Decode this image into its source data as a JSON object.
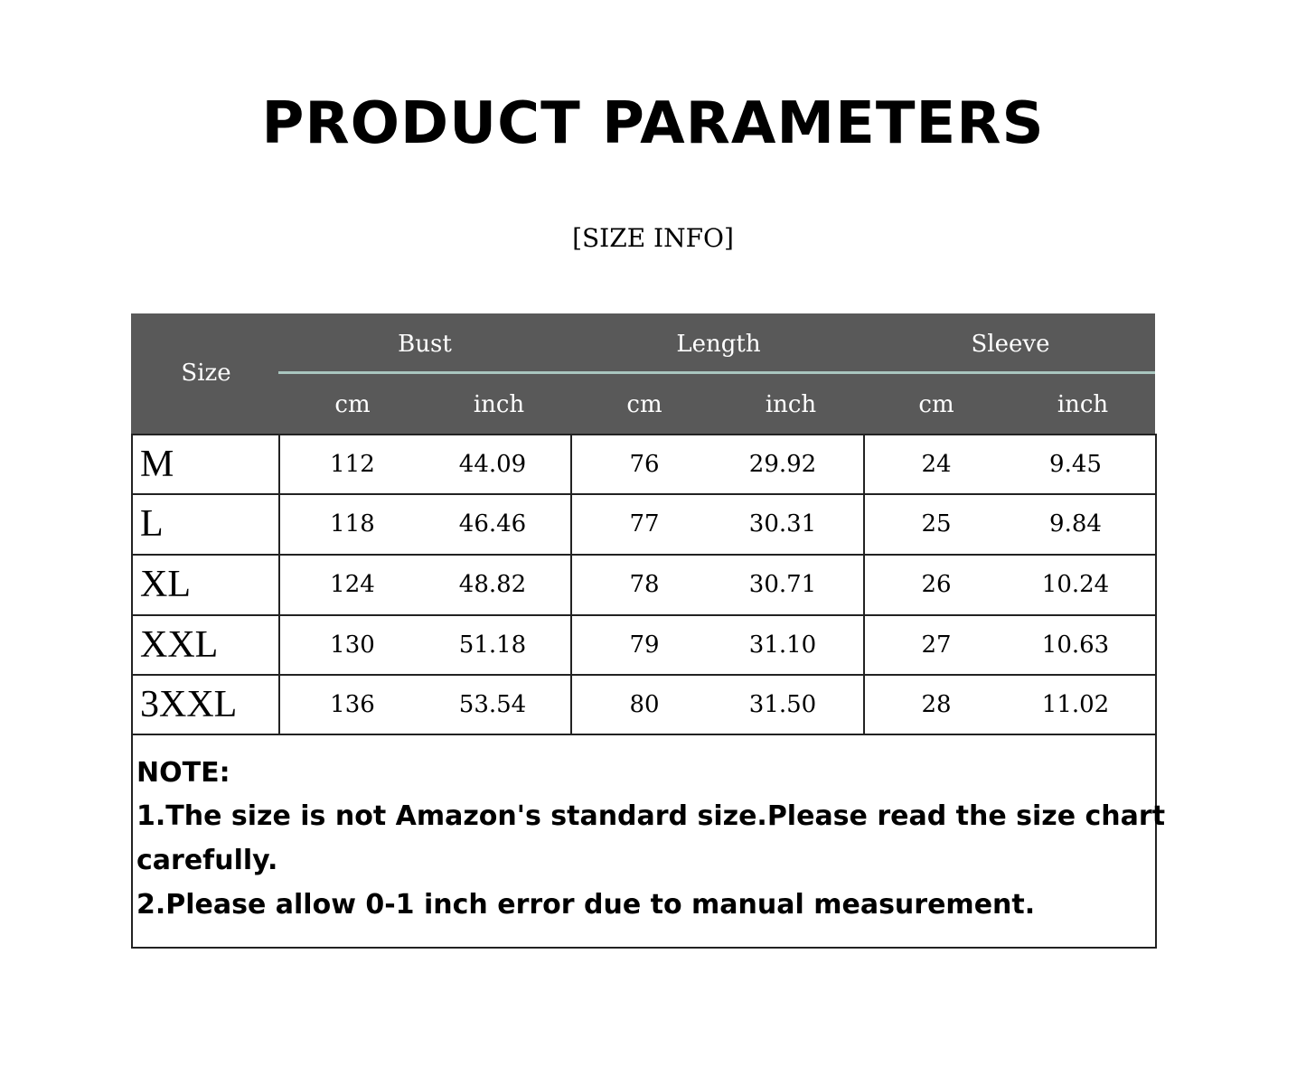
{
  "title": "PRODUCT PARAMETERS",
  "subtitle": "[SIZE INFO]",
  "table": {
    "size_header": "Size",
    "groups": [
      "Bust",
      "Length",
      "Sleeve"
    ],
    "units": [
      "cm",
      "inch",
      "cm",
      "inch",
      "cm",
      "inch"
    ],
    "header_bg": "#595959",
    "rows": [
      {
        "size": "M",
        "values": [
          "112",
          "44.09",
          "76",
          "29.92",
          "24",
          "9.45"
        ]
      },
      {
        "size": "L",
        "values": [
          "118",
          "46.46",
          "77",
          "30.31",
          "25",
          "9.84"
        ]
      },
      {
        "size": "XL",
        "values": [
          "124",
          "48.82",
          "78",
          "30.71",
          "26",
          "10.24"
        ]
      },
      {
        "size": "XXL",
        "values": [
          "130",
          "51.18",
          "79",
          "31.10",
          "27",
          "10.63"
        ]
      },
      {
        "size": "3XXL",
        "values": [
          "136",
          "53.54",
          "80",
          "31.50",
          "28",
          "11.02"
        ]
      }
    ]
  },
  "note": {
    "heading": "NOTE:",
    "line1a": "1.The size is not Amazon's standard size.Please read the size chart",
    "line1b": "carefully.",
    "line2": "2.Please allow 0-1 inch error due to manual measurement."
  }
}
